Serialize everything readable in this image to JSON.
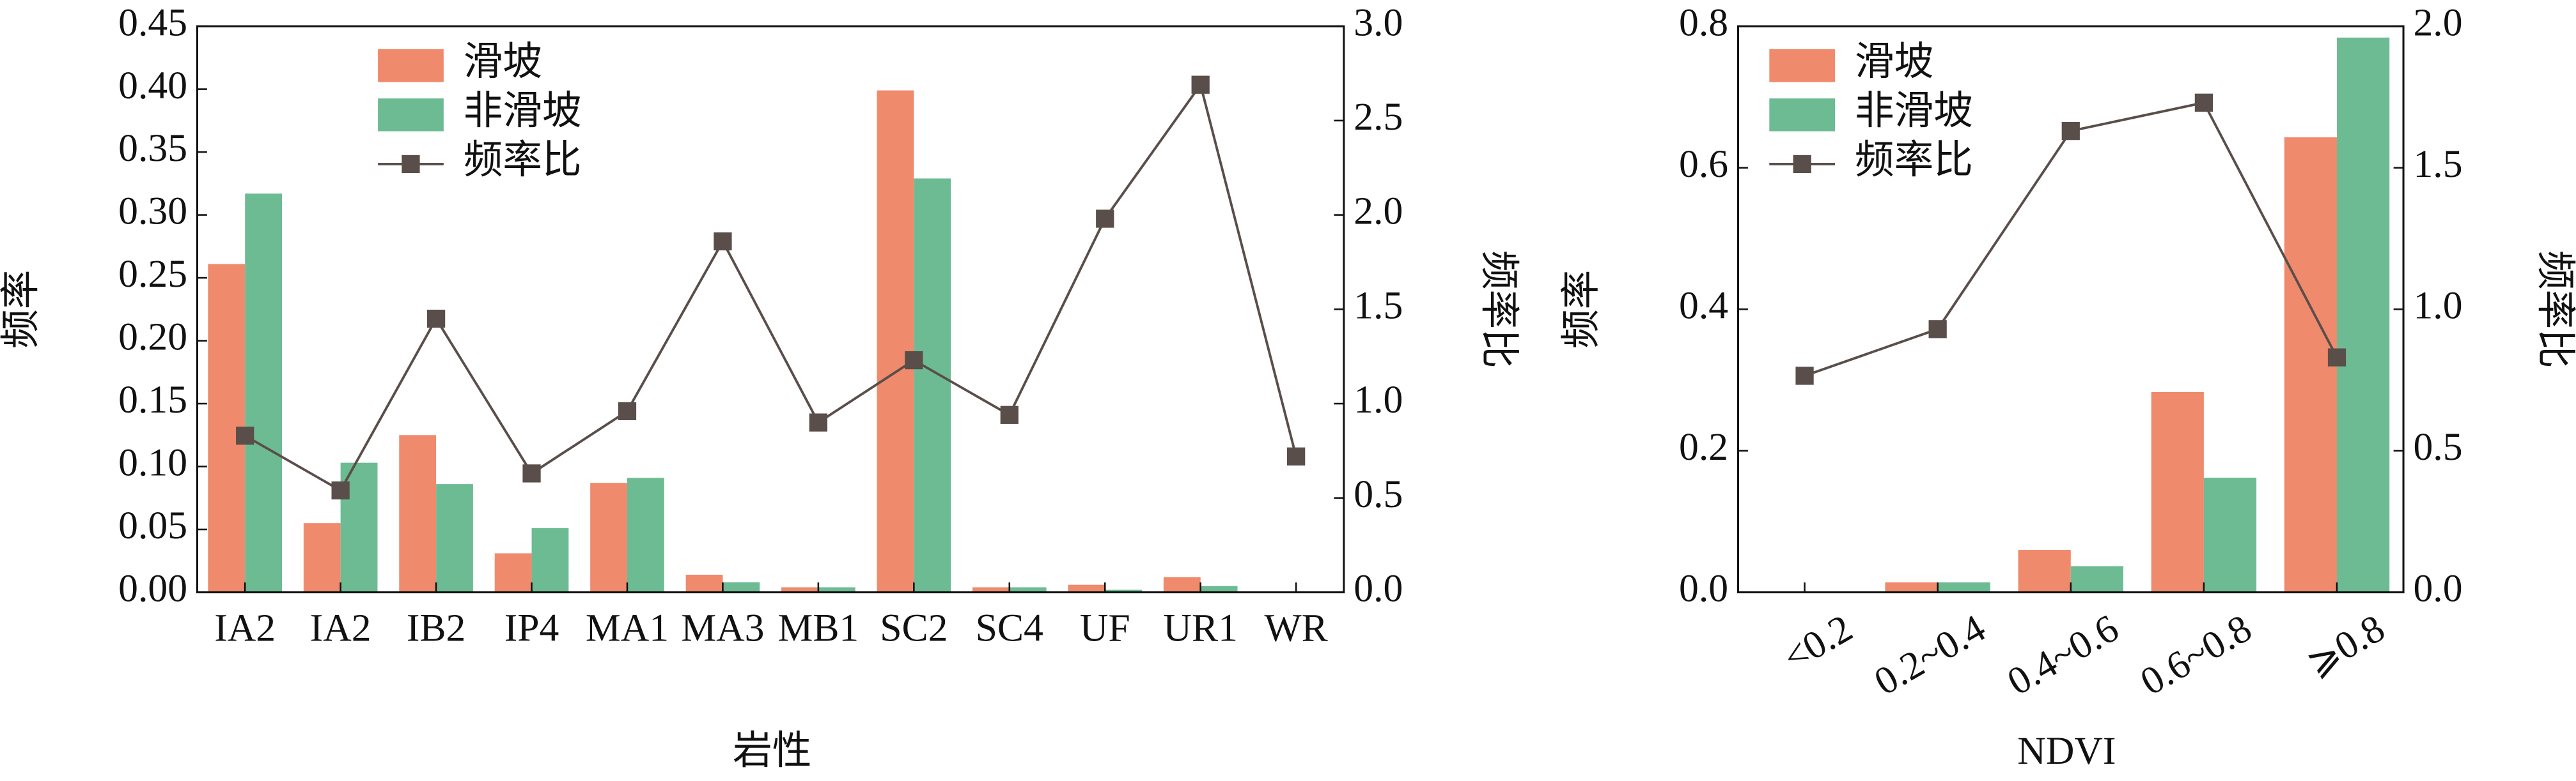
{
  "chart_data": [
    {
      "type": "bar",
      "xlabel": "岩性",
      "ylabel": "频率",
      "y2label": "频率比",
      "categories": [
        "IA2",
        "IA2",
        "IB2",
        "IP4",
        "MA1",
        "MA3",
        "MB1",
        "SC2",
        "SC4",
        "UF",
        "UR1",
        "WR"
      ],
      "series": [
        {
          "name": "滑坡",
          "type": "bar",
          "color": "#f08a6c",
          "values": [
            0.261,
            0.055,
            0.125,
            0.031,
            0.087,
            0.014,
            0.004,
            0.399,
            0.004,
            0.006,
            0.012,
            0.0
          ]
        },
        {
          "name": "非滑坡",
          "type": "bar",
          "color": "#6dbb93",
          "values": [
            0.317,
            0.103,
            0.086,
            0.051,
            0.091,
            0.008,
            0.004,
            0.329,
            0.004,
            0.002,
            0.005,
            0.0
          ]
        },
        {
          "name": "频率比",
          "type": "line",
          "axis": "y2",
          "color": "#5a4e4a",
          "values": [
            0.83,
            0.54,
            1.45,
            0.63,
            0.96,
            1.86,
            0.9,
            1.23,
            0.94,
            1.98,
            2.69,
            0.72
          ]
        }
      ],
      "ylim": [
        0,
        0.45
      ],
      "yticks": [
        {
          "value": 0,
          "label": "0.00"
        },
        0.05,
        {
          "value": 0.1,
          "label": "0.10"
        },
        0.15,
        {
          "value": 0.2,
          "label": "0.20"
        },
        0.25,
        {
          "value": 0.3,
          "label": "0.30"
        },
        0.35,
        {
          "value": 0.4,
          "label": "0.40"
        },
        0.45
      ],
      "y2lim": [
        0,
        3
      ],
      "y2ticks": [
        {
          "value": 0,
          "label": "0.0"
        },
        0.5,
        {
          "value": 1,
          "label": "1.0"
        },
        1.5,
        {
          "value": 2,
          "label": "2.0"
        },
        2.5,
        {
          "value": 3,
          "label": "3.0"
        }
      ],
      "legend": "upper-left"
    },
    {
      "type": "bar",
      "xlabel": "NDVI",
      "ylabel": "频率",
      "y2label": "频率比",
      "categories": [
        "<0.2",
        "0.2~0.4",
        "0.4~0.6",
        "0.6~0.8",
        "⩾0.8"
      ],
      "series": [
        {
          "name": "滑坡",
          "type": "bar",
          "color": "#f08a6c",
          "values": [
            0,
            0.014,
            0.06,
            0.283,
            0.643
          ]
        },
        {
          "name": "非滑坡",
          "type": "bar",
          "color": "#6dbb93",
          "values": [
            0,
            0.014,
            0.037,
            0.162,
            0.784
          ]
        },
        {
          "name": "频率比",
          "type": "line",
          "axis": "y2",
          "color": "#5a4e4a",
          "values": [
            0.765,
            0.93,
            1.63,
            1.73,
            0.83
          ]
        }
      ],
      "ylim": [
        0,
        0.8
      ],
      "yticks": [
        {
          "value": 0,
          "label": "0.0"
        },
        0.2,
        0.4,
        0.6,
        0.8
      ],
      "y2lim": [
        0,
        2
      ],
      "y2ticks": [
        {
          "value": 0,
          "label": "0.0"
        },
        0.5,
        {
          "value": 1,
          "label": "1.0"
        },
        1.5,
        {
          "value": 2,
          "label": "2.0"
        }
      ],
      "legend": "upper-left"
    }
  ]
}
